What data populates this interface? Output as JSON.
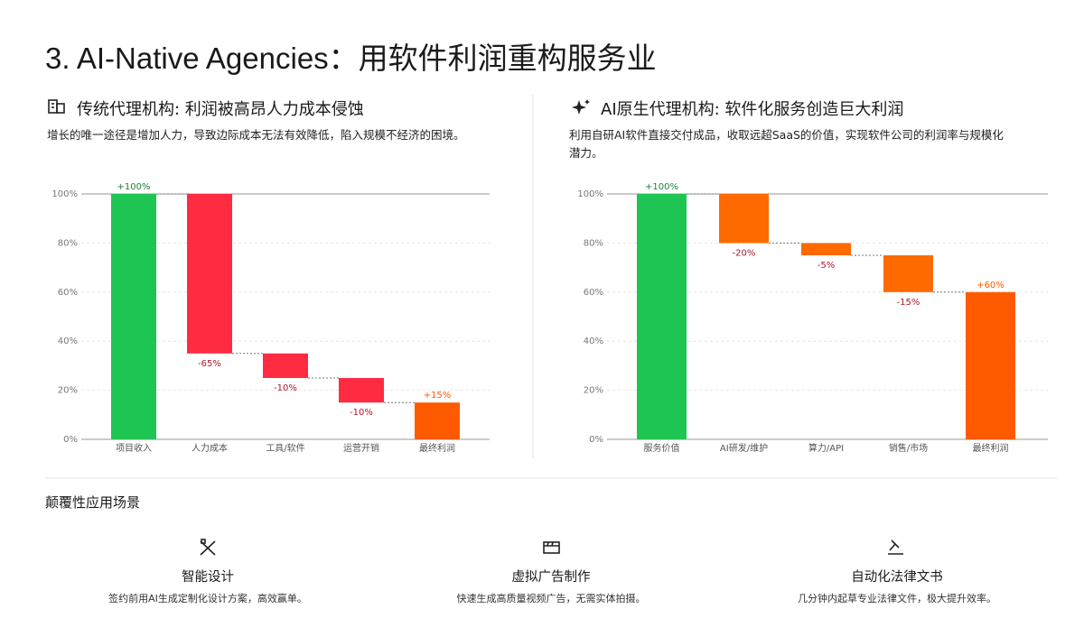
{
  "title": "3. AI-Native Agencies：用软件利润重构服务业",
  "chart_data": [
    {
      "type": "waterfall",
      "title": "传统代理机构: 利润被高昂人力成本侵蚀",
      "subtitle": "增长的唯一途径是增加人力，导致边际成本无法有效降低，陷入规模不经济的困境。",
      "categories": [
        "项目收入",
        "人力成本",
        "工具/软件",
        "运营开销",
        "最终利润"
      ],
      "values": [
        100,
        -65,
        -10,
        -10,
        15
      ],
      "value_labels": [
        "+100%",
        "-65%",
        "-10%",
        "-10%",
        "+15%"
      ],
      "colors": [
        "#1ec552",
        "#ff2b41",
        "#ff2b41",
        "#ff2b41",
        "#ff5a00"
      ],
      "ylim": [
        0,
        100
      ],
      "yticks": [
        {
          "value": 0,
          "label": "0%"
        },
        {
          "value": 20,
          "label": "20%"
        },
        {
          "value": 40,
          "label": "40%"
        },
        {
          "value": 60,
          "label": "60%"
        },
        {
          "value": 80,
          "label": "80%"
        },
        {
          "value": 100,
          "label": "100%"
        }
      ],
      "grid": true
    },
    {
      "type": "waterfall",
      "title": "AI原生代理机构: 软件化服务创造巨大利润",
      "subtitle": "利用自研AI软件直接交付成品，收取远超SaaS的价值，实现软件公司的利润率与规模化潜力。",
      "categories": [
        "服务价值",
        "AI研发/维护",
        "算力/API",
        "销售/市场",
        "最终利润"
      ],
      "values": [
        100,
        -20,
        -5,
        -15,
        60
      ],
      "value_labels": [
        "+100%",
        "-20%",
        "-5%",
        "-15%",
        "+60%"
      ],
      "colors": [
        "#1ec552",
        "#ff6a00",
        "#ff6a00",
        "#ff6a00",
        "#ff5a00"
      ],
      "ylim": [
        0,
        100
      ],
      "yticks": [
        {
          "value": 0,
          "label": "0%"
        },
        {
          "value": 20,
          "label": "20%"
        },
        {
          "value": 40,
          "label": "40%"
        },
        {
          "value": 60,
          "label": "60%"
        },
        {
          "value": 80,
          "label": "80%"
        },
        {
          "value": 100,
          "label": "100%"
        }
      ],
      "grid": true
    }
  ],
  "scenarios": {
    "title": "颠覆性应用场景",
    "items": [
      {
        "title": "智能设计",
        "text": "签约前用AI生成定制化设计方案，高效赢单。"
      },
      {
        "title": "虚拟广告制作",
        "text": "快速生成高质量视频广告，无需实体拍摄。"
      },
      {
        "title": "自动化法律文书",
        "text": "几分钟内起草专业法律文件，极大提升效率。"
      }
    ]
  }
}
